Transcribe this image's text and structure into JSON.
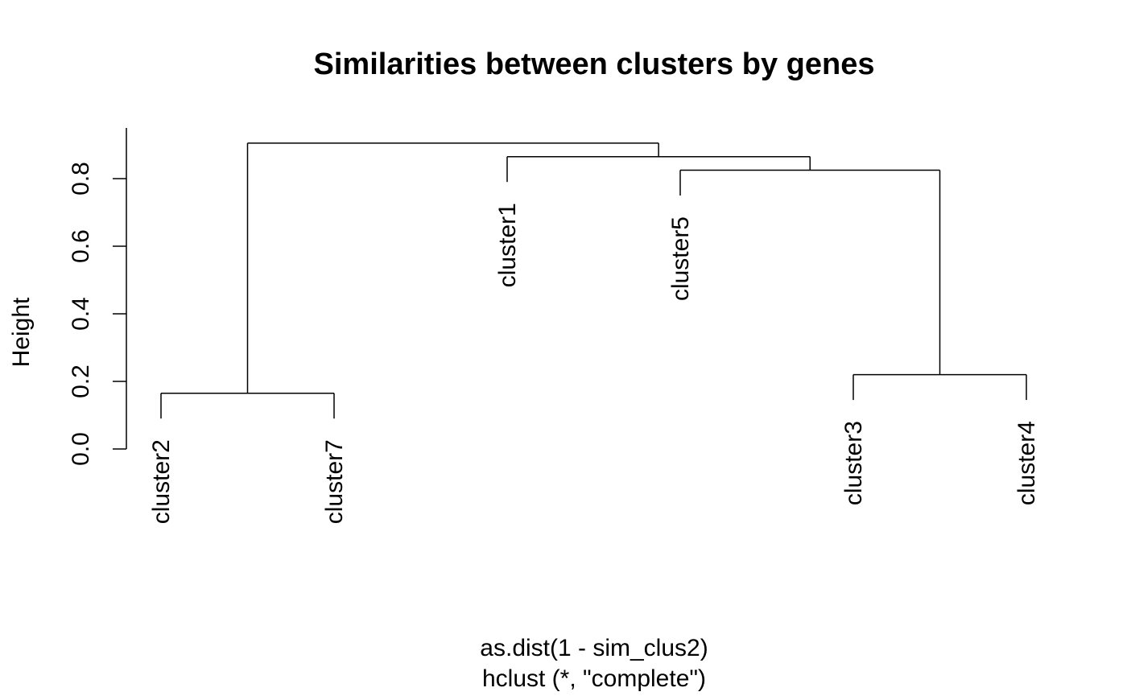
{
  "chart_data": {
    "type": "dendrogram",
    "title": "Similarities between clusters by genes",
    "ylabel": "Height",
    "xlabel_lines": [
      "as.dist(1 - sim_clus2)",
      "hclust (*, \"complete\")"
    ],
    "ylim": [
      0,
      0.95
    ],
    "yticks": [
      0.0,
      0.2,
      0.4,
      0.6,
      0.8
    ],
    "ytick_labels": [
      "0.0",
      "0.2",
      "0.4",
      "0.6",
      "0.8"
    ],
    "leaves": [
      "cluster2",
      "cluster7",
      "cluster1",
      "cluster5",
      "cluster3",
      "cluster4"
    ],
    "merges": [
      {
        "members": [
          "cluster2",
          "cluster7"
        ],
        "height": 0.165
      },
      {
        "members": [
          "cluster3",
          "cluster4"
        ],
        "height": 0.22
      },
      {
        "members": [
          "cluster5",
          "cluster3",
          "cluster4"
        ],
        "height": 0.825
      },
      {
        "members": [
          "cluster1",
          "cluster5",
          "cluster3",
          "cluster4"
        ],
        "height": 0.865
      },
      {
        "members": [
          "cluster2",
          "cluster7",
          "cluster1",
          "cluster5",
          "cluster3",
          "cluster4"
        ],
        "height": 0.905
      }
    ],
    "leaf_hang": 0.075,
    "colors": {
      "lines": "#000000",
      "text": "#000000",
      "background": "#ffffff"
    }
  }
}
